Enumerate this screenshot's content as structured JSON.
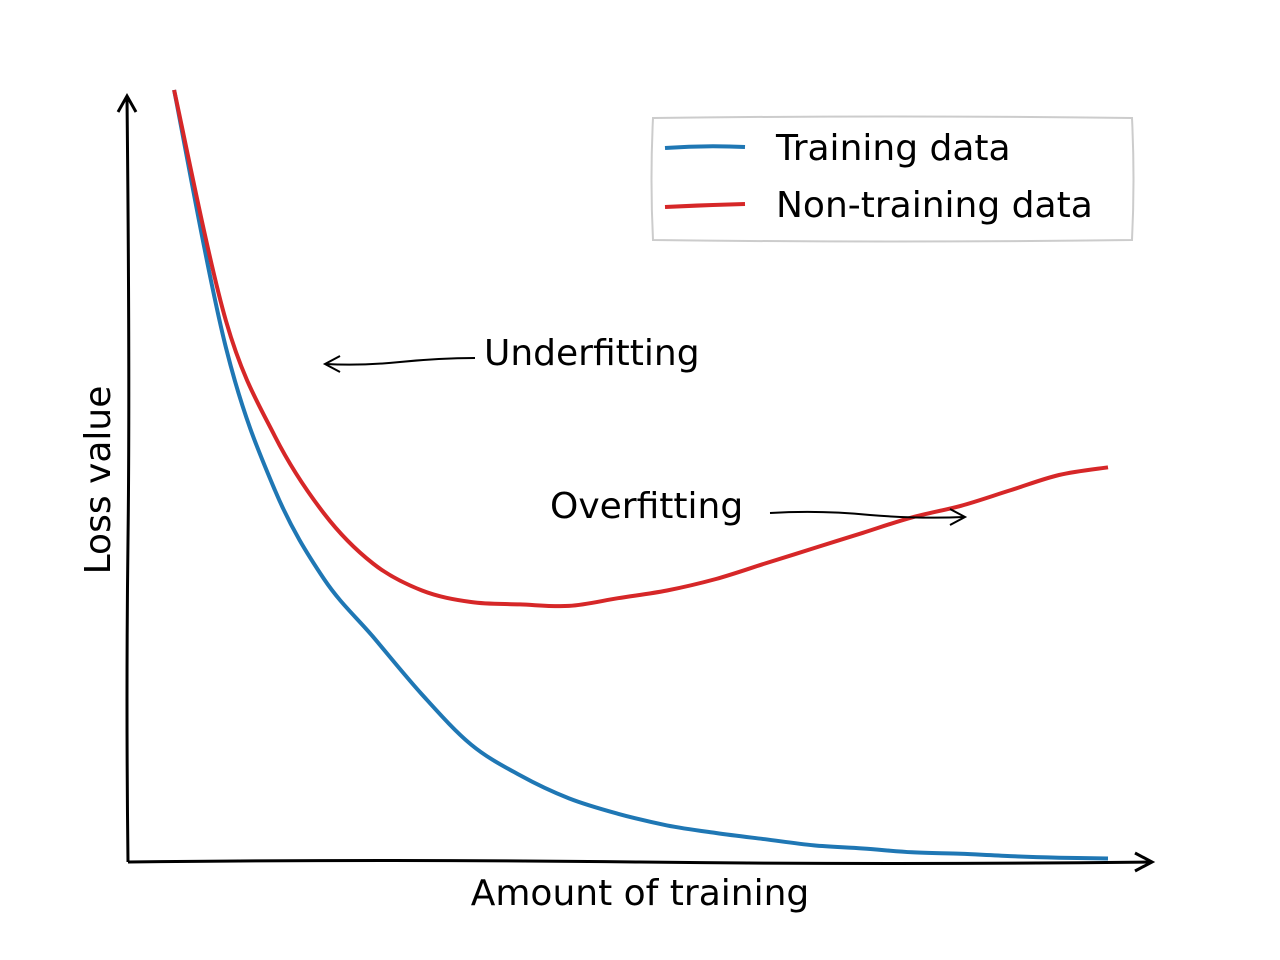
{
  "chart_data": {
    "type": "line",
    "title": "",
    "xlabel": "Amount of training",
    "ylabel": "Loss value",
    "xlim": [
      0,
      1
    ],
    "ylim": [
      0,
      1
    ],
    "grid": false,
    "legend_position": "top-right",
    "x": [
      0.047,
      0.1,
      0.15,
      0.2,
      0.25,
      0.3,
      0.35,
      0.4,
      0.45,
      0.5,
      0.55,
      0.6,
      0.65,
      0.7,
      0.75,
      0.8,
      0.85,
      0.9,
      0.95,
      1.0
    ],
    "series": [
      {
        "name": "Training data",
        "color": "#1f77b4",
        "values": [
          1.0,
          0.665,
          0.48,
          0.365,
          0.29,
          0.215,
          0.15,
          0.11,
          0.08,
          0.06,
          0.045,
          0.035,
          0.027,
          0.019,
          0.015,
          0.01,
          0.008,
          0.005,
          0.003,
          0.002
        ]
      },
      {
        "name": "Non-training data",
        "color": "#d62728",
        "values": [
          1.0,
          0.7,
          0.55,
          0.45,
          0.385,
          0.35,
          0.335,
          0.332,
          0.33,
          0.34,
          0.35,
          0.365,
          0.385,
          0.405,
          0.425,
          0.445,
          0.46,
          0.48,
          0.5,
          0.51
        ]
      }
    ],
    "annotations": [
      {
        "text": "Underfitting",
        "point": [
          0.2,
          0.65
        ]
      },
      {
        "text": "Overfitting",
        "point": [
          0.855,
          0.448
        ]
      }
    ]
  }
}
